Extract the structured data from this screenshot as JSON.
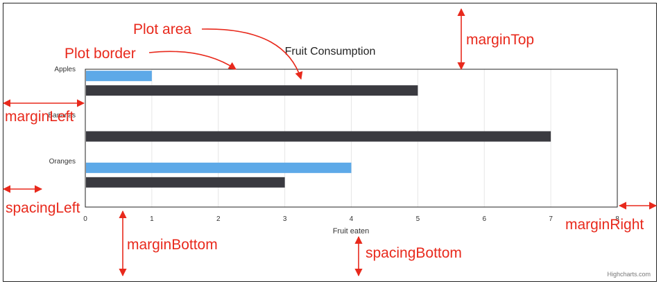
{
  "chart_data": {
    "type": "bar",
    "orientation": "horizontal",
    "title": "Fruit Consumption",
    "categories": [
      "Apples",
      "Bananas",
      "Oranges"
    ],
    "series": [
      {
        "values": [
          1,
          null,
          4
        ],
        "color": "#5da9e8"
      },
      {
        "values": [
          5,
          7,
          3
        ],
        "color": "#3a3a40"
      }
    ],
    "xlabel": "Fruit eaten",
    "ylabel": "",
    "xlim": [
      0,
      8
    ],
    "xticks": [
      0,
      1,
      2,
      3,
      4,
      5,
      6,
      7,
      8
    ],
    "grid": true,
    "legend": "none"
  },
  "annotations": {
    "plot_area": "Plot area",
    "plot_border": "Plot border",
    "margin_top": "marginTop",
    "margin_left": "marginLeft",
    "spacing_left": "spacingLeft",
    "margin_bottom": "marginBottom",
    "spacing_bottom": "spacingBottom",
    "margin_right": "marginRight"
  },
  "credits": "Highcharts.com",
  "colors": {
    "annotation": "#e8291c",
    "grid": "#e6e6e6",
    "axis_text": "#333333"
  }
}
